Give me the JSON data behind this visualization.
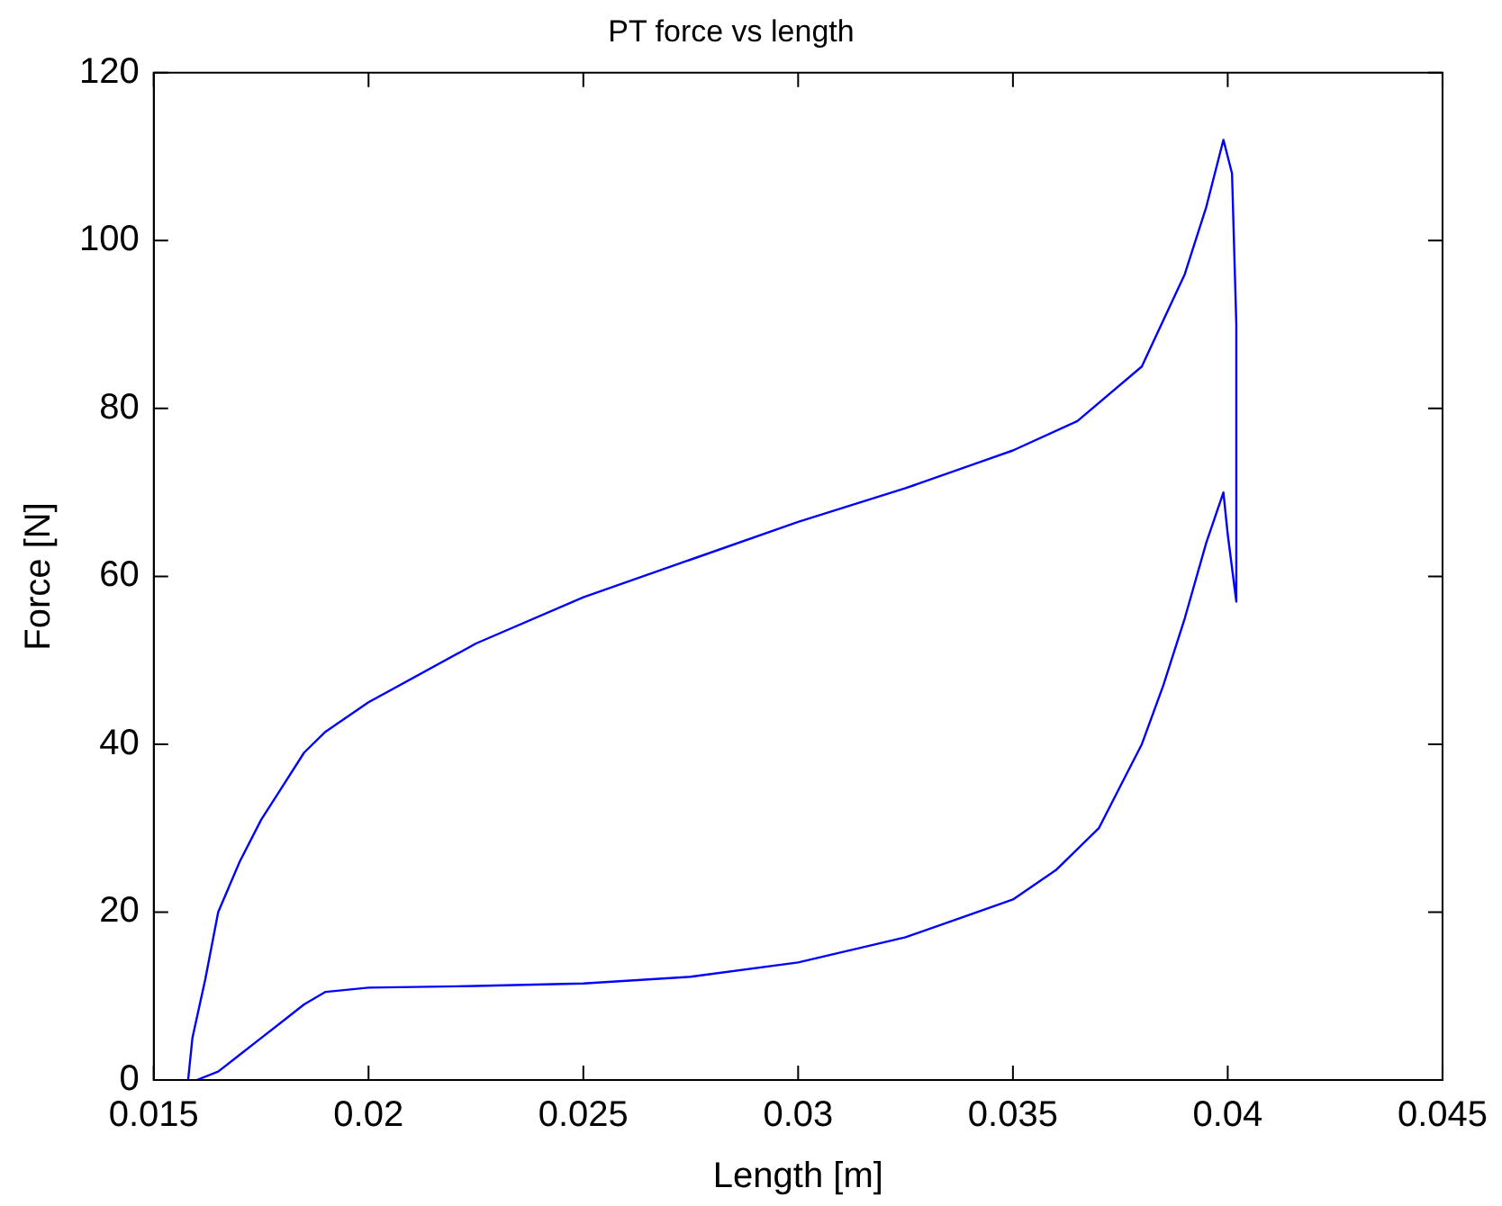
{
  "chart_data": {
    "type": "line",
    "title": "PT force vs length",
    "xlabel": "Length [m]",
    "ylabel": "Force [N]",
    "x": [
      0.0158,
      0.0159,
      0.0162,
      0.0165,
      0.017,
      0.0175,
      0.018,
      0.0185,
      0.019,
      0.02,
      0.0225,
      0.025,
      0.0275,
      0.03,
      0.0325,
      0.035,
      0.0365,
      0.038,
      0.039,
      0.0395,
      0.0398,
      0.0399,
      0.04,
      0.0401,
      0.0402,
      0.0402,
      0.04,
      0.0399,
      0.0395,
      0.039,
      0.0385,
      0.038,
      0.0375,
      0.037,
      0.036,
      0.035,
      0.0325,
      0.03,
      0.0275,
      0.025,
      0.0225,
      0.02,
      0.019,
      0.0185,
      0.018,
      0.0175,
      0.017,
      0.0165,
      0.016
    ],
    "series": [
      {
        "color": "#0000ff",
        "values": [
          0,
          5,
          12,
          20,
          26,
          31,
          35,
          39,
          41.5,
          45,
          52,
          57.5,
          62,
          66.5,
          70.5,
          75,
          78.5,
          85,
          96,
          104,
          110,
          112,
          110,
          108,
          90,
          57,
          65,
          70,
          64,
          55,
          47,
          40,
          35,
          30,
          25,
          21.5,
          17,
          14,
          12.3,
          11.5,
          11.2,
          11,
          10.5,
          9,
          7,
          5,
          3,
          1,
          0
        ]
      }
    ],
    "xlim": [
      0.015,
      0.045
    ],
    "xticks": [
      0.015,
      0.02,
      0.025,
      0.03,
      0.035,
      0.04,
      0.045
    ],
    "ylim": [
      0,
      120
    ],
    "yticks": [
      0,
      20,
      40,
      60,
      80,
      100,
      120
    ],
    "grid": false,
    "legend": false,
    "marker": "none",
    "line_style": "solid"
  }
}
